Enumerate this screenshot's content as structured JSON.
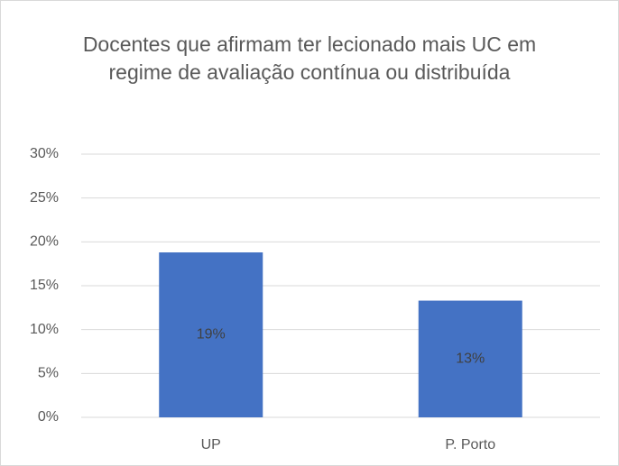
{
  "chart_data": {
    "type": "bar",
    "title": "Docentes que afirmam ter lecionado mais UC em regime de avaliação contínua ou distribuída",
    "categories": [
      "UP",
      "P. Porto"
    ],
    "values": [
      18.8,
      13.3
    ],
    "value_labels": [
      "19%",
      "13%"
    ],
    "color": "#4472c4",
    "ylim": [
      0,
      30
    ],
    "yticks": [
      {
        "value": 0,
        "label": "0%"
      },
      {
        "value": 5,
        "label": "5%"
      },
      {
        "value": 10,
        "label": "10%"
      },
      {
        "value": 15,
        "label": "15%"
      },
      {
        "value": 20,
        "label": "20%"
      },
      {
        "value": 25,
        "label": "25%"
      },
      {
        "value": 30,
        "label": "30%"
      }
    ],
    "grid": true
  }
}
